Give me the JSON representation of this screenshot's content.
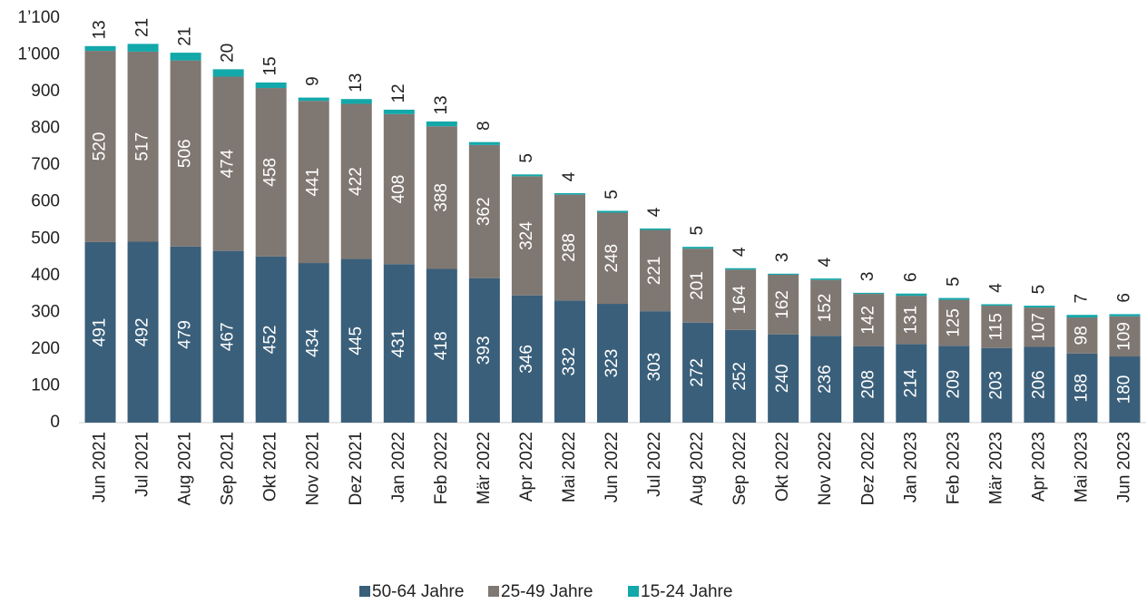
{
  "chart_data": {
    "type": "stacked_bar",
    "categories": [
      "Jun 2021",
      "Jul 2021",
      "Aug 2021",
      "Sep 2021",
      "Okt 2021",
      "Nov 2021",
      "Dez 2021",
      "Jan 2022",
      "Feb 2022",
      "Mär 2022",
      "Apr 2022",
      "Mai 2022",
      "Jun 2022",
      "Jul 2022",
      "Aug 2022",
      "Sep 2022",
      "Okt 2022",
      "Nov 2022",
      "Dez 2022",
      "Jan 2023",
      "Feb 2023",
      "Mär 2023",
      "Apr 2023",
      "Mai 2023",
      "Jun 2023"
    ],
    "series": [
      {
        "name": "50-64 Jahre",
        "color": "#3a5f7a",
        "values": [
          491,
          492,
          479,
          467,
          452,
          434,
          445,
          431,
          418,
          393,
          346,
          332,
          323,
          303,
          272,
          252,
          240,
          236,
          208,
          214,
          209,
          203,
          206,
          188,
          180
        ]
      },
      {
        "name": "25-49 Jahre",
        "color": "#7f7771",
        "values": [
          520,
          517,
          506,
          474,
          458,
          441,
          422,
          408,
          388,
          362,
          324,
          288,
          248,
          221,
          201,
          164,
          162,
          152,
          142,
          131,
          125,
          115,
          107,
          98,
          109
        ]
      },
      {
        "name": "15-24 Jahre",
        "color": "#13a8aa",
        "values": [
          13,
          21,
          21,
          20,
          15,
          9,
          13,
          12,
          13,
          8,
          5,
          4,
          5,
          4,
          5,
          4,
          3,
          4,
          3,
          6,
          5,
          4,
          5,
          7,
          6
        ]
      }
    ],
    "ylim": [
      0,
      1100
    ],
    "yticks": [
      0,
      100,
      200,
      300,
      400,
      500,
      600,
      700,
      800,
      900,
      {
        "value": 1000,
        "label": "1’000"
      },
      {
        "value": 1100,
        "label": "1’100"
      }
    ],
    "grid": false,
    "legend": "bottom"
  }
}
